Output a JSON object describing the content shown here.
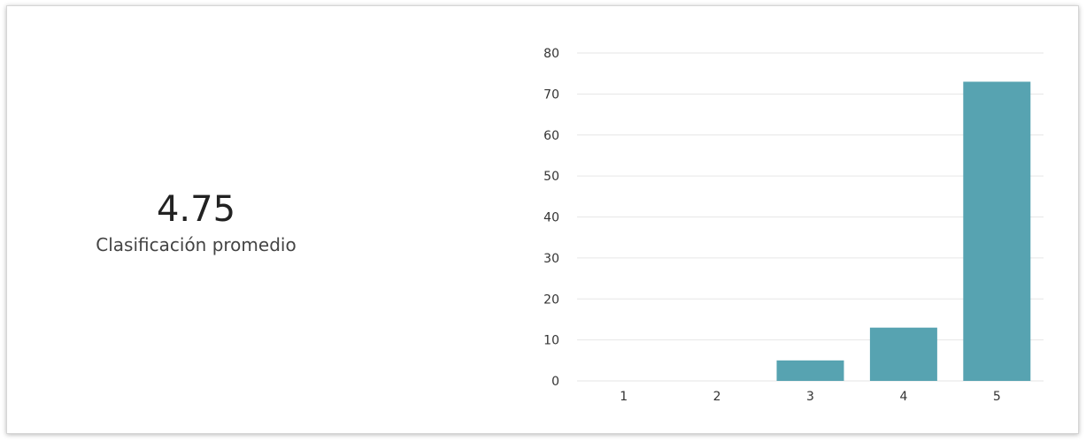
{
  "summary": {
    "average_value": "4.75",
    "average_label": "Clasificación promedio"
  },
  "colors": {
    "bar": "#57a3b1",
    "grid": "#e6e6e6"
  },
  "chart_data": {
    "type": "bar",
    "categories": [
      "1",
      "2",
      "3",
      "4",
      "5"
    ],
    "values": [
      0,
      0,
      5,
      13,
      73
    ],
    "ylim": [
      0,
      80
    ],
    "yticks": [
      "0",
      "10",
      "20",
      "30",
      "40",
      "50",
      "60",
      "70",
      "80"
    ],
    "grid": true,
    "title": "",
    "xlabel": "",
    "ylabel": ""
  }
}
